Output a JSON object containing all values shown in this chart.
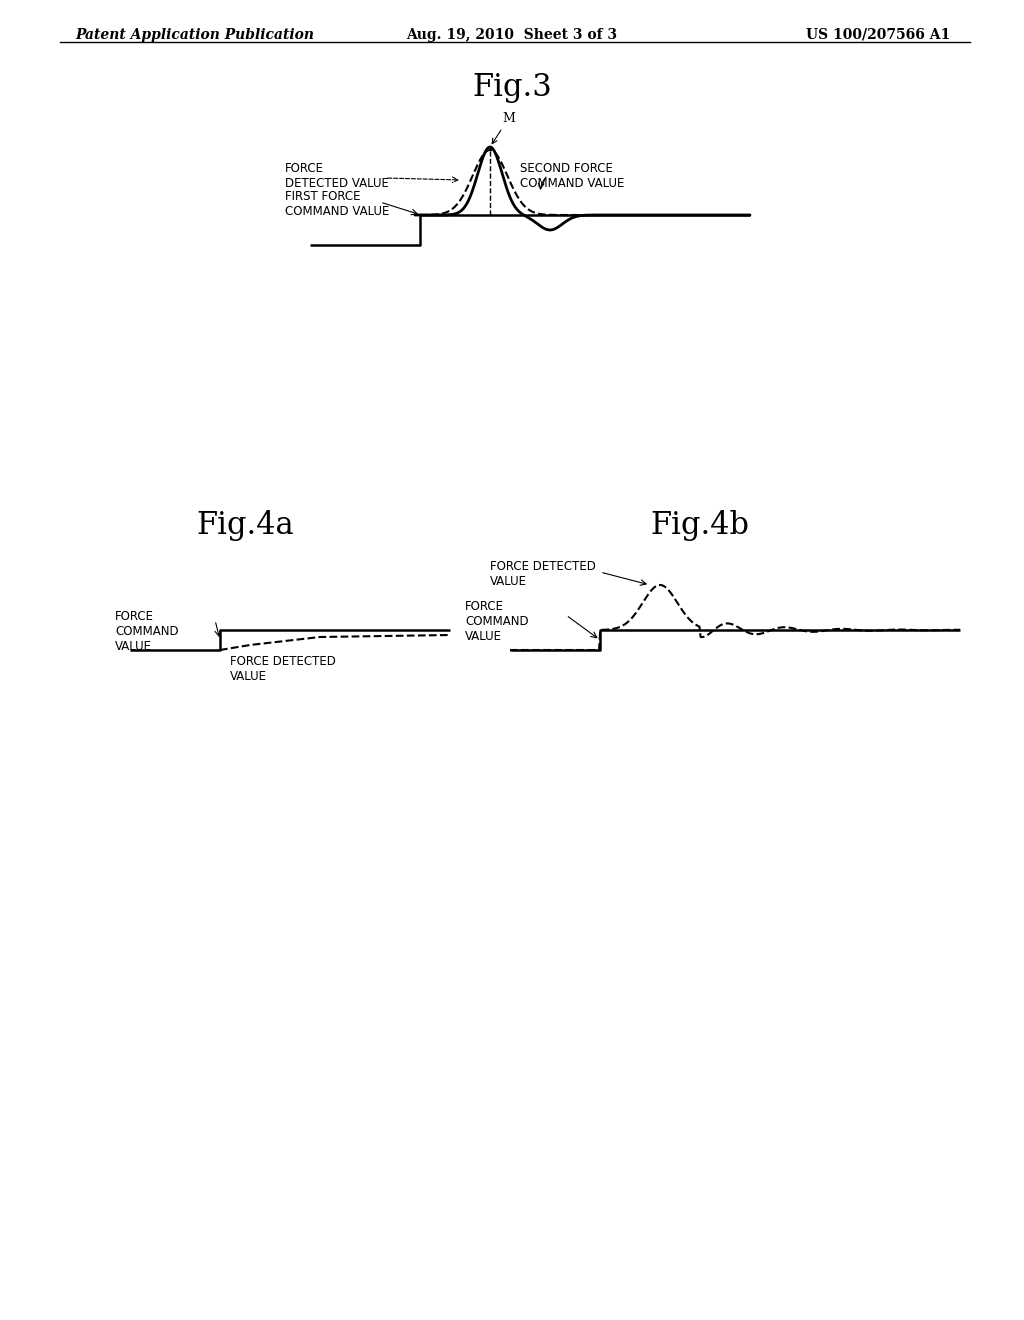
{
  "bg_color": "#ffffff",
  "header_left": "Patent Application Publication",
  "header_mid": "Aug. 19, 2010  Sheet 3 of 3",
  "header_right": "US 100/207566 A1",
  "fig3_title": "Fig.3",
  "fig4a_title": "Fig.4a",
  "fig4b_title": "Fig.4b",
  "header_font_size": 10,
  "title_font_size": 22,
  "label_font_size": 8.5
}
